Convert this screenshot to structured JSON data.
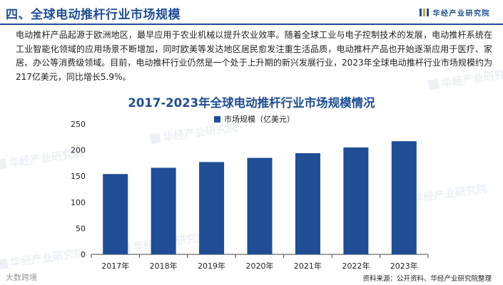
{
  "header": {
    "title": "四、全球电动推杆行业市场规模",
    "brand": "华经产业研究院"
  },
  "intro": "电动推杆产品起源于欧洲地区，最早应用于农业机械以提升农业效率。随着全球工业与电子控制技术的发展，电动推杆系统在工业智能化领域的应用场景不断增加，同时欧美等发达地区居民愈发注重生活品质，电动推杆产品也开始逐渐应用于医疗、家居、办公等消费级领域。目前，电动推杆行业仍然是一个处于上升期的新兴发展行业，2023年全球电动推杆行业市场规模约为217亿美元，同比增长5.9%。",
  "watermark": "华经产业研究院",
  "corner_mark": "大数跨境",
  "source": "资料来源：公开资料、华经产业研究院整理",
  "colors": {
    "primary": "#1f4e96",
    "accent": "#c9a23b"
  },
  "chart_data": {
    "type": "bar",
    "title": "2017-2023年全球电动推杆行业市场规模情况",
    "categories": [
      "2017年",
      "2018年",
      "2019年",
      "2020年",
      "2021年",
      "2022年",
      "2023年"
    ],
    "series": [
      {
        "name": "市场规模（亿美元）",
        "values": [
          154,
          166,
          177,
          185,
          194,
          205,
          217
        ]
      }
    ],
    "ylim": [
      0,
      250
    ],
    "yticks": [
      0,
      50,
      100,
      150,
      200,
      250
    ],
    "grid": false,
    "legend": "top-center",
    "bar_color": "#1f4e96"
  }
}
